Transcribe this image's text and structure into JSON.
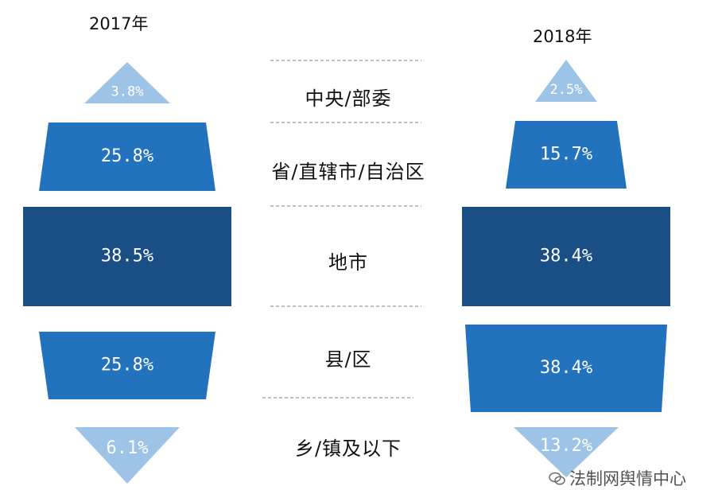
{
  "chart_data": {
    "type": "funnel",
    "levels": [
      "中央/部委",
      "省/直辖市/自治区",
      "地市",
      "县/区",
      "乡/镇及以下"
    ],
    "series": [
      {
        "name": "2017年",
        "values": [
          3.8,
          25.8,
          38.5,
          25.8,
          6.1
        ],
        "labels": [
          "3.8%",
          "25.8%",
          "38.5%",
          "25.8%",
          "6.1%"
        ]
      },
      {
        "name": "2018年",
        "values": [
          2.5,
          15.7,
          38.4,
          38.4,
          13.2
        ],
        "labels": [
          "2.5%",
          "15.7%",
          "38.4%",
          "38.4%",
          "13.2%"
        ]
      }
    ],
    "colors": {
      "light": "#9dc3e6",
      "medium": "#2272bd",
      "dark": "#1a4f85",
      "label_on_light": "#ffffff",
      "label_on_dark": "#ffffff",
      "separator": "#9a9a9a"
    }
  },
  "watermark": "法制网舆情中心"
}
